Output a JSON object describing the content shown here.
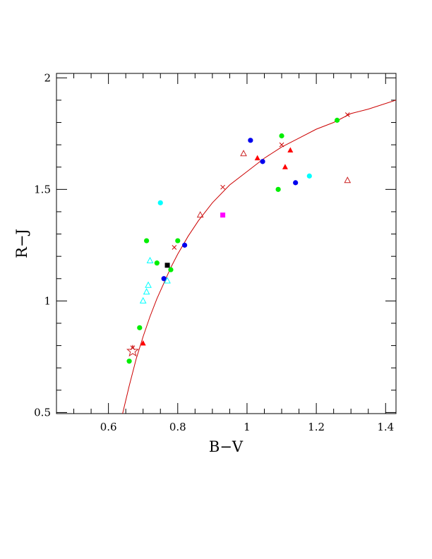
{
  "chart_data": {
    "type": "scatter",
    "title": "",
    "xlabel": "B−V",
    "ylabel": "R−J",
    "xlim": [
      0.45,
      1.43
    ],
    "ylim": [
      0.495,
      2.02
    ],
    "x_ticks_major": [
      0.6,
      0.8,
      1.0,
      1.2,
      1.4
    ],
    "x_tick_labels": [
      "0.6",
      "0.8",
      "1",
      "1.2",
      "1.4"
    ],
    "y_ticks_major": [
      0.5,
      1.0,
      1.5,
      2.0
    ],
    "y_tick_labels": [
      "0.5",
      "1",
      "1.5",
      "2"
    ],
    "grid": false,
    "legend": "none",
    "colors": {
      "red": "#ff0000",
      "darkred": "#cc2222",
      "green": "#00ee00",
      "blue": "#0000ee",
      "cyan": "#00ffff",
      "magenta": "#ff00ff",
      "black": "#000000"
    },
    "fit_curve": {
      "color": "#cc0000",
      "points": [
        [
          0.64,
          0.49
        ],
        [
          0.66,
          0.62
        ],
        [
          0.68,
          0.74
        ],
        [
          0.7,
          0.84
        ],
        [
          0.72,
          0.93
        ],
        [
          0.74,
          1.01
        ],
        [
          0.76,
          1.08
        ],
        [
          0.78,
          1.15
        ],
        [
          0.8,
          1.21
        ],
        [
          0.83,
          1.29
        ],
        [
          0.86,
          1.36
        ],
        [
          0.9,
          1.44
        ],
        [
          0.95,
          1.52
        ],
        [
          1.0,
          1.58
        ],
        [
          1.05,
          1.64
        ],
        [
          1.1,
          1.69
        ],
        [
          1.15,
          1.73
        ],
        [
          1.2,
          1.77
        ],
        [
          1.25,
          1.8
        ],
        [
          1.3,
          1.84
        ],
        [
          1.35,
          1.86
        ],
        [
          1.43,
          1.9
        ]
      ],
      "cross_markers": [
        [
          0.67,
          0.79
        ],
        [
          0.79,
          1.24
        ],
        [
          0.93,
          1.51
        ],
        [
          1.1,
          1.7
        ],
        [
          1.29,
          1.835
        ]
      ]
    },
    "series": [
      {
        "marker": "circle",
        "color": "#00ee00",
        "points": [
          [
            0.66,
            0.73
          ],
          [
            0.69,
            0.88
          ],
          [
            0.71,
            1.27
          ],
          [
            0.74,
            1.17
          ],
          [
            0.78,
            1.14
          ],
          [
            0.8,
            1.27
          ],
          [
            1.09,
            1.5
          ],
          [
            1.1,
            1.74
          ],
          [
            1.26,
            1.81
          ]
        ]
      },
      {
        "marker": "circle",
        "color": "#0000ee",
        "points": [
          [
            0.76,
            1.1
          ],
          [
            0.82,
            1.25
          ],
          [
            1.01,
            1.72
          ],
          [
            1.045,
            1.625
          ],
          [
            1.14,
            1.53
          ]
        ]
      },
      {
        "marker": "circle",
        "color": "#00ffff",
        "points": [
          [
            0.75,
            1.44
          ],
          [
            1.18,
            1.56
          ]
        ]
      },
      {
        "marker": "triangle-open",
        "color": "#00ffff",
        "points": [
          [
            0.7,
            1.0
          ],
          [
            0.71,
            1.04
          ],
          [
            0.715,
            1.07
          ],
          [
            0.72,
            1.18
          ],
          [
            0.77,
            1.09
          ]
        ]
      },
      {
        "marker": "triangle-filled",
        "color": "#ff0000",
        "points": [
          [
            0.7,
            0.81
          ],
          [
            1.03,
            1.64
          ],
          [
            1.11,
            1.6
          ],
          [
            1.125,
            1.675
          ]
        ]
      },
      {
        "marker": "triangle-open",
        "color": "#cc2222",
        "points": [
          [
            0.865,
            1.385
          ],
          [
            0.99,
            1.66
          ],
          [
            1.29,
            1.54
          ]
        ]
      },
      {
        "marker": "square",
        "color": "#ff00ff",
        "points": [
          [
            0.93,
            1.385
          ]
        ]
      },
      {
        "marker": "square",
        "color": "#000000",
        "points": [
          [
            0.77,
            1.16
          ]
        ]
      },
      {
        "marker": "star-open",
        "color": "#cc2222",
        "points": [
          [
            0.67,
            0.775
          ]
        ]
      }
    ]
  }
}
